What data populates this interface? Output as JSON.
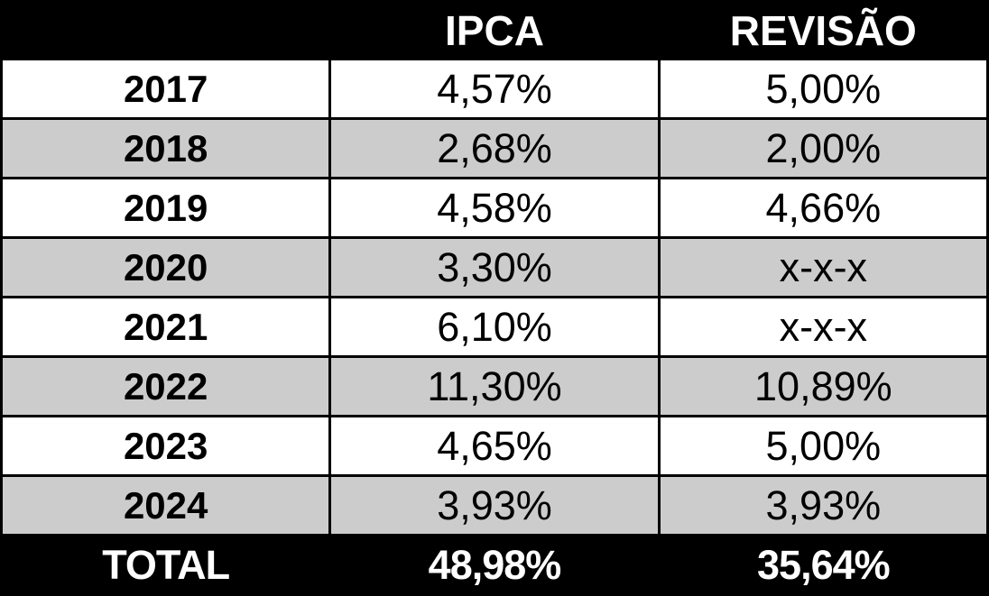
{
  "colors": {
    "header_bg": "#000000",
    "header_text": "#ffffff",
    "row_even_bg": "#ffffff",
    "row_odd_bg": "#cccccc",
    "body_text": "#000000",
    "total_bg": "#000000",
    "total_text": "#ffffff",
    "border": "#000000"
  },
  "table": {
    "headers": [
      "",
      "IPCA",
      "REVISÃO"
    ],
    "rows": [
      {
        "cells": [
          "2017",
          "4,57%",
          "5,00%"
        ]
      },
      {
        "cells": [
          "2018",
          "2,68%",
          "2,00%"
        ]
      },
      {
        "cells": [
          "2019",
          "4,58%",
          "4,66%"
        ]
      },
      {
        "cells": [
          "2020",
          "3,30%",
          "x-x-x"
        ]
      },
      {
        "cells": [
          "2021",
          "6,10%",
          "x-x-x"
        ]
      },
      {
        "cells": [
          "2022",
          "11,30%",
          "10,89%"
        ]
      },
      {
        "cells": [
          "2023",
          "4,65%",
          "5,00%"
        ]
      },
      {
        "cells": [
          "2024",
          "3,93%",
          "3,93%"
        ]
      }
    ],
    "total": {
      "cells": [
        "TOTAL",
        "48,98%",
        "35,64%"
      ]
    }
  },
  "chart_data": {
    "type": "table",
    "columns": [
      "",
      "IPCA",
      "REVISÃO"
    ],
    "categories": [
      "2017",
      "2018",
      "2019",
      "2020",
      "2021",
      "2022",
      "2023",
      "2024"
    ],
    "series": [
      {
        "name": "IPCA",
        "values": [
          4.57,
          2.68,
          4.58,
          3.3,
          6.1,
          11.3,
          4.65,
          3.93
        ],
        "total": 48.98
      },
      {
        "name": "REVISÃO",
        "values": [
          5.0,
          2.0,
          4.66,
          null,
          null,
          10.89,
          5.0,
          3.93
        ],
        "total": 35.64
      }
    ],
    "missing_value_marker": "x-x-x",
    "value_format": "percent_comma_decimal"
  }
}
